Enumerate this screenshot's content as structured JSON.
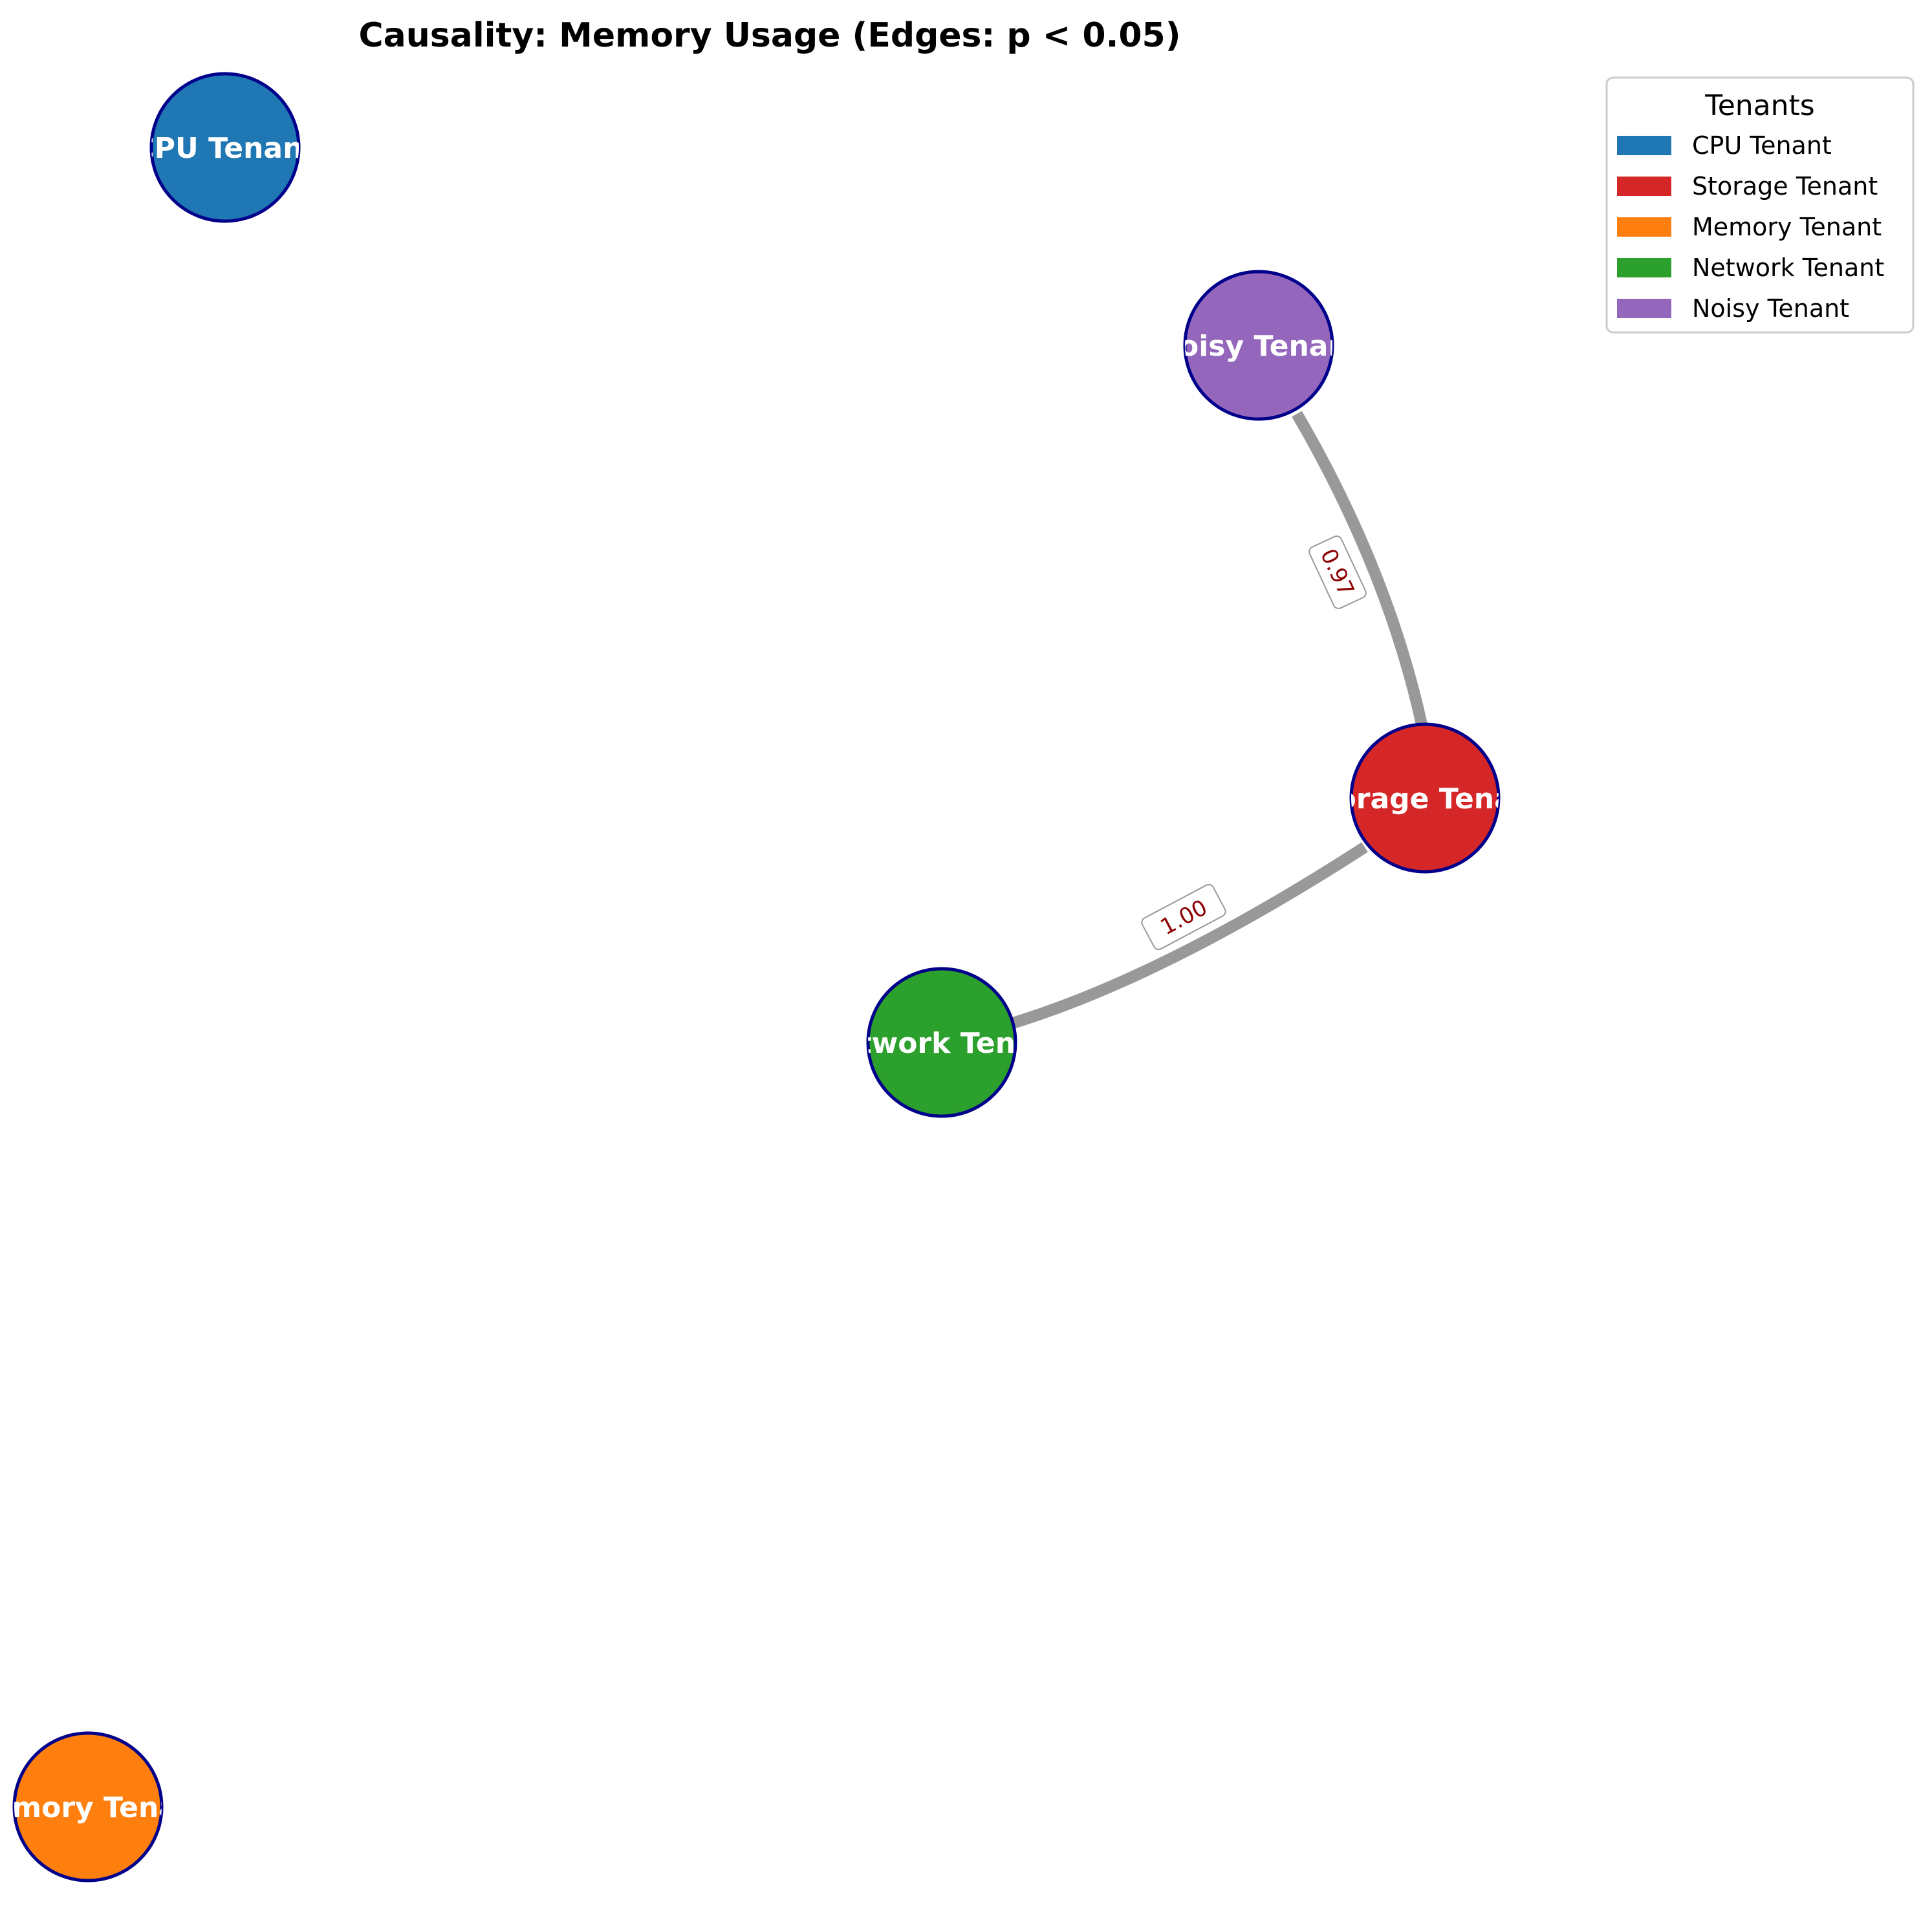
{
  "title": "Causality: Memory Usage (Edges: p < 0.05)",
  "legend": {
    "title": "Tenants",
    "entries": [
      {
        "label": "CPU Tenant",
        "color": "#1f77b4"
      },
      {
        "label": "Storage Tenant",
        "color": "#d62728"
      },
      {
        "label": "Memory Tenant",
        "color": "#ff7f0e"
      },
      {
        "label": "Network Tenant",
        "color": "#2ca02c"
      },
      {
        "label": "Noisy Tenant",
        "color": "#9467bd"
      }
    ]
  },
  "nodes": [
    {
      "id": "cpu",
      "label": "CPU Tenant",
      "color": "#1f77b4"
    },
    {
      "id": "noisy",
      "label": "Noisy Tenant",
      "color": "#9467bd"
    },
    {
      "id": "storage",
      "label": "Storage Tenant",
      "color": "#d62728"
    },
    {
      "id": "network",
      "label": "Network Tenant",
      "color": "#2ca02c"
    },
    {
      "id": "memory",
      "label": "Memory Tenant",
      "color": "#ff7f0e"
    }
  ],
  "edges": [
    {
      "from": "noisy",
      "to": "storage",
      "label": "0.97"
    },
    {
      "from": "storage",
      "to": "network",
      "label": "1.00"
    }
  ],
  "colors": {
    "node_border": "#00008b",
    "edge": "#999999",
    "edge_label": "#8b0000"
  }
}
